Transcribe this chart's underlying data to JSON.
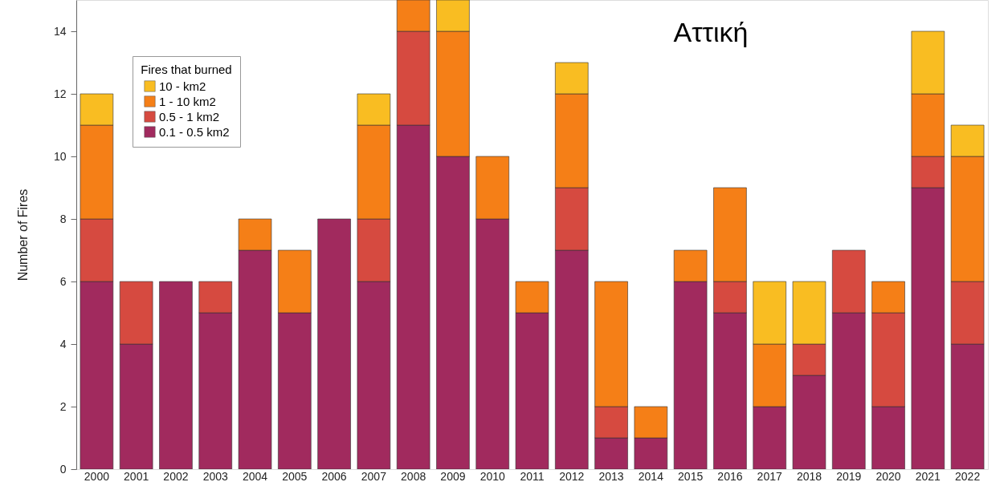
{
  "chart_data": {
    "type": "bar",
    "title": "Αττική",
    "ylabel": "Number of Fires",
    "legend_title": "Fires that burned",
    "categories": [
      "2000",
      "2001",
      "2002",
      "2003",
      "2004",
      "2005",
      "2006",
      "2007",
      "2008",
      "2009",
      "2010",
      "2011",
      "2012",
      "2013",
      "2014",
      "2015",
      "2016",
      "2017",
      "2018",
      "2019",
      "2020",
      "2021",
      "2022"
    ],
    "stacked": true,
    "series": [
      {
        "name": "0.1 - 0.5 km2",
        "color": "#a12a5e",
        "values": [
          6,
          4,
          6,
          5,
          7,
          5,
          8,
          6,
          11,
          10,
          8,
          5,
          7,
          1,
          1,
          6,
          5,
          2,
          3,
          5,
          2,
          9,
          4
        ]
      },
      {
        "name": "0.5 - 1 km2",
        "color": "#d64a40",
        "values": [
          2,
          2,
          0,
          1,
          0,
          0,
          0,
          2,
          3,
          0,
          0,
          0,
          2,
          1,
          0,
          0,
          1,
          0,
          1,
          2,
          3,
          1,
          2
        ]
      },
      {
        "name": "1 - 10 km2",
        "color": "#f57f17",
        "values": [
          3,
          0,
          0,
          0,
          1,
          2,
          0,
          3,
          1,
          4,
          2,
          1,
          3,
          4,
          1,
          1,
          3,
          2,
          0,
          0,
          1,
          2,
          4
        ]
      },
      {
        "name": "10 - km2",
        "color": "#f9bd22",
        "values": [
          1,
          0,
          0,
          0,
          0,
          0,
          0,
          1,
          0,
          1,
          0,
          0,
          1,
          0,
          0,
          0,
          0,
          2,
          2,
          0,
          0,
          2,
          1
        ]
      }
    ],
    "ylim": [
      0,
      15
    ],
    "yticks": [
      0,
      2,
      4,
      6,
      8,
      10,
      12,
      14
    ],
    "grid": false,
    "legend": "top left"
  }
}
